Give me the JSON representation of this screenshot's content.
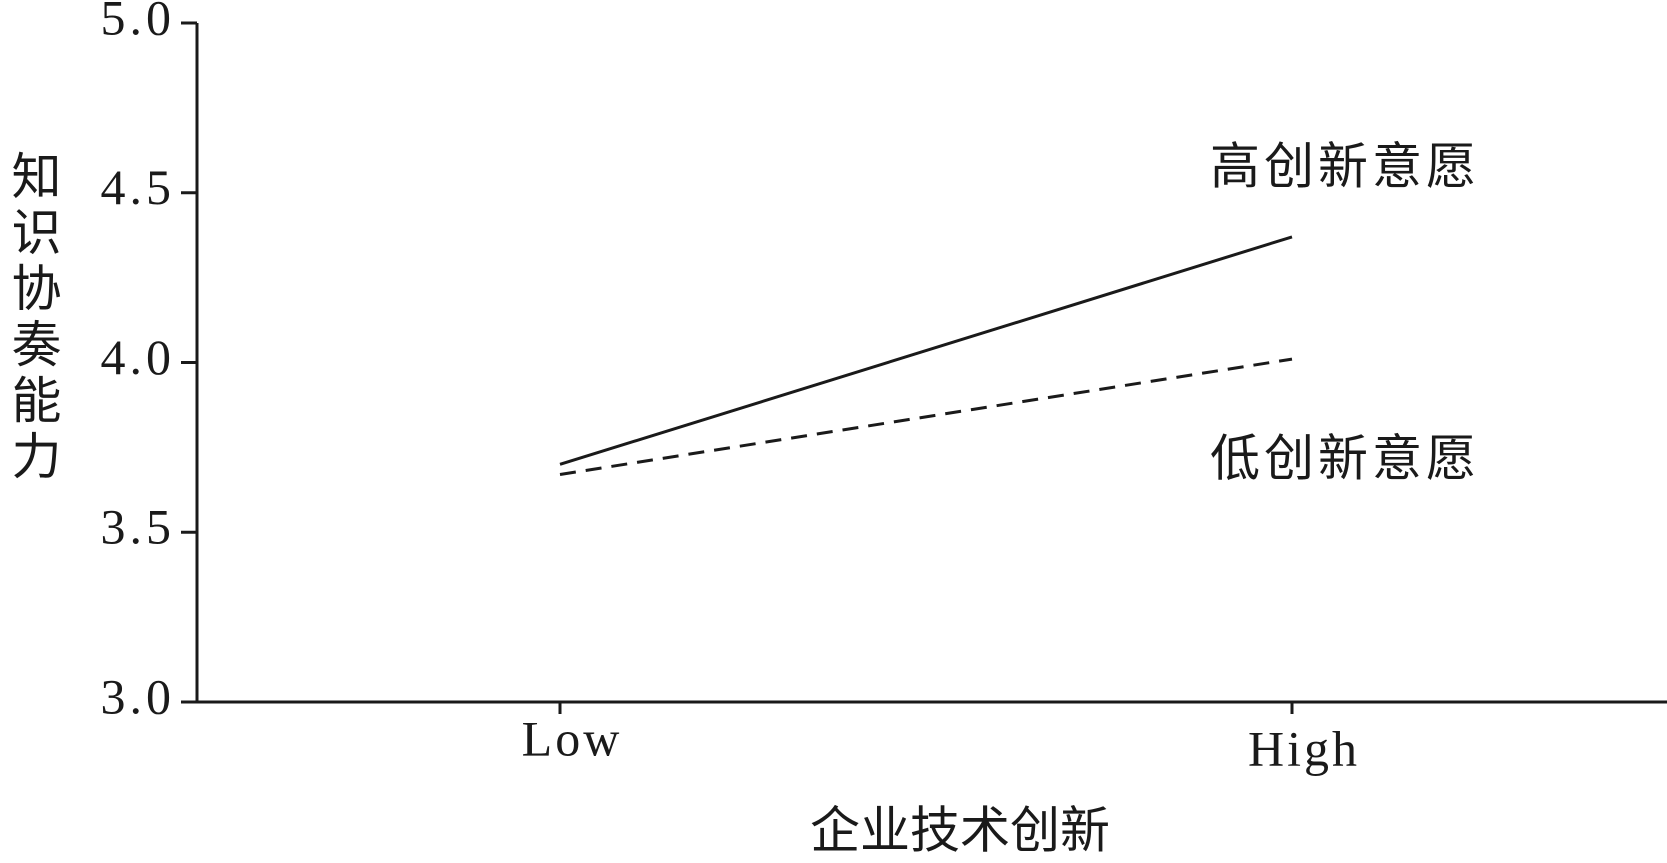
{
  "chart_data": {
    "type": "line",
    "x_label": "企业技术创新",
    "y_label": "知识协奏能力",
    "categories": [
      "Low",
      "High"
    ],
    "series": [
      {
        "name": "高创新意愿",
        "color": "#1a1a1a",
        "dash": "solid",
        "values": [
          3.7,
          4.37
        ]
      },
      {
        "name": "低创新意愿",
        "color": "#1a1a1a",
        "dash": "dashed",
        "values": [
          3.67,
          4.01
        ]
      }
    ],
    "ylim": [
      3.0,
      5.0
    ],
    "yticks": [
      {
        "value": 3.0,
        "label": "3.0"
      },
      3.5,
      {
        "value": 4.0,
        "label": "4.0"
      },
      4.5,
      {
        "value": 5.0,
        "label": "5.0"
      }
    ]
  }
}
